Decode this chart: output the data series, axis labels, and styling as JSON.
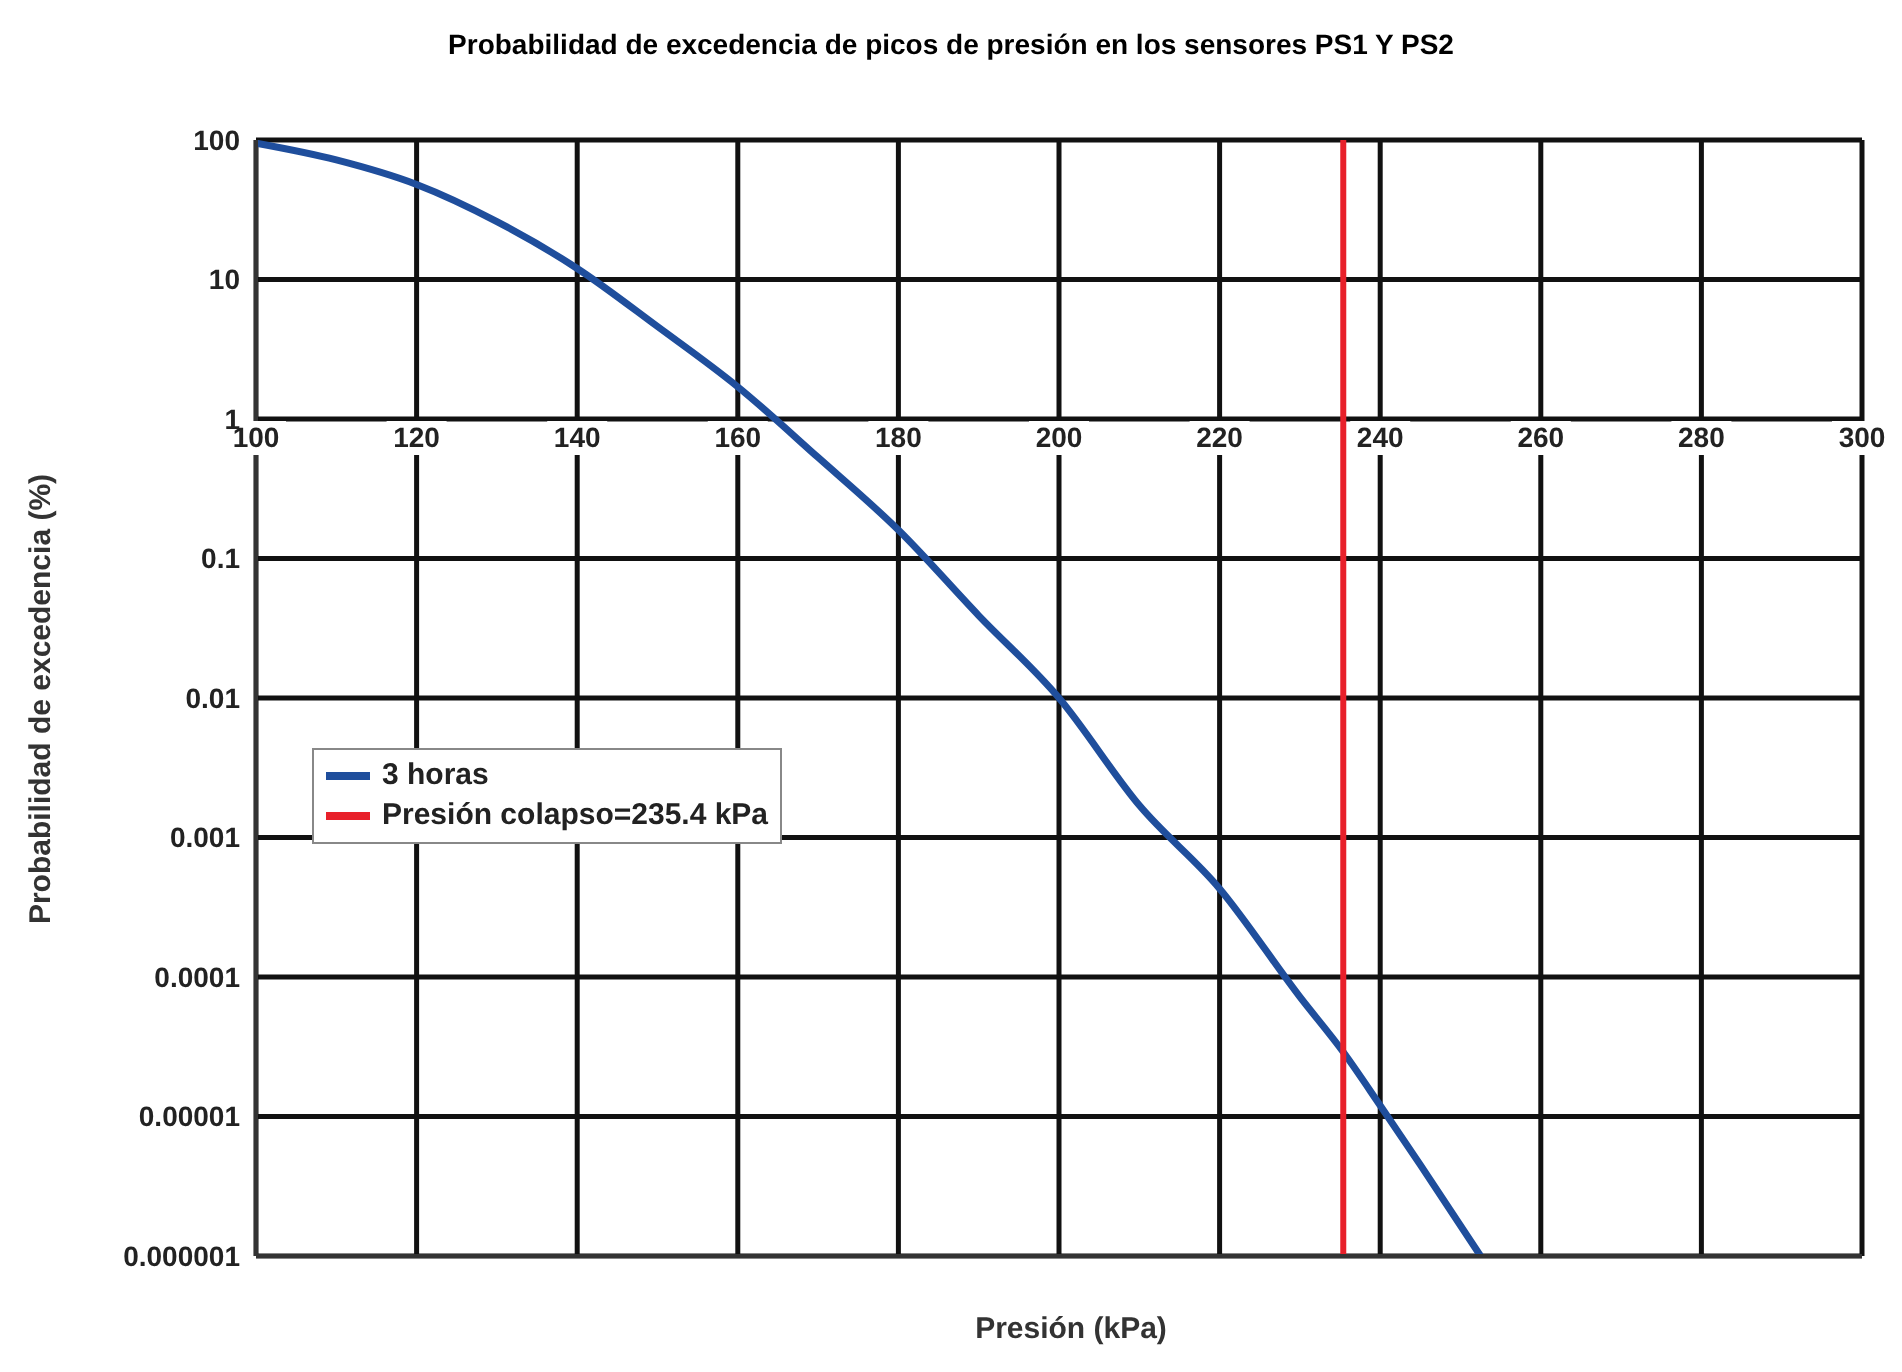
{
  "chart_data": {
    "type": "line",
    "title": "Probabilidad de excedencia de picos de presión en los sensores PS1 Y PS2",
    "xlabel": "Presión (kPa)",
    "ylabel": "Probabilidad de excedencia (%)",
    "xlim": [
      100,
      300
    ],
    "xticks": [
      100,
      120,
      140,
      160,
      180,
      200,
      220,
      240,
      260,
      280,
      300
    ],
    "ylim": [
      1e-06,
      100
    ],
    "yticks": [
      {
        "value": 1e-06,
        "label": "0.000001"
      },
      {
        "value": 1e-05,
        "label": "0.00001"
      },
      0.0001,
      0.001,
      0.01,
      0.1,
      1,
      10,
      100
    ],
    "log": "y",
    "grid": true,
    "legend": "left",
    "series": [
      {
        "name": "3 horas",
        "color": "#1f4e9c",
        "x": [
          100,
          110,
          120,
          130,
          140,
          150,
          160,
          170,
          180,
          190,
          200,
          210,
          220,
          230,
          235.4,
          240,
          245,
          252.5
        ],
        "values": [
          95,
          72,
          48,
          26,
          12,
          4.6,
          1.7,
          0.53,
          0.16,
          0.039,
          0.01,
          0.0017,
          0.00043,
          7.2e-05,
          2.9e-05,
          1.2e-05,
          4.5e-06,
          1e-06
        ]
      },
      {
        "name": "Presión colapso=235.4 kPa",
        "color": "#e8202a",
        "x": [
          235.4,
          235.4
        ],
        "values": [
          1e-06,
          100
        ]
      }
    ]
  }
}
